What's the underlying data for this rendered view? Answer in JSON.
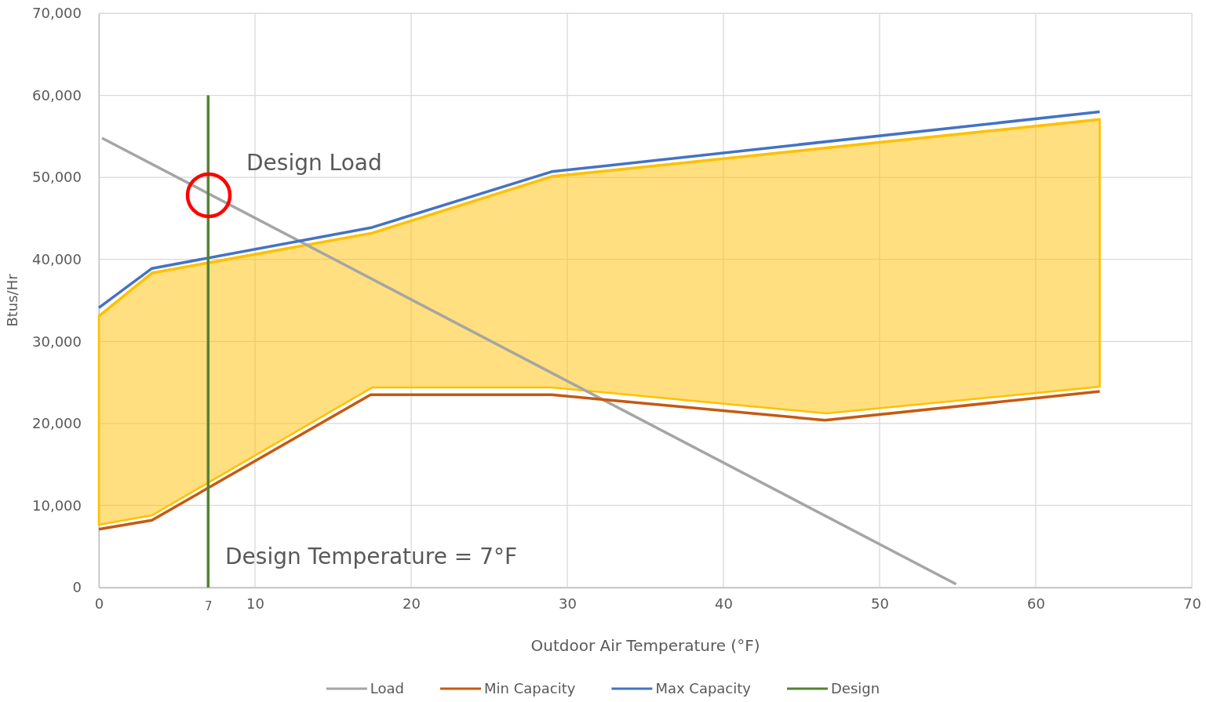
{
  "chart_data": {
    "type": "line",
    "xlabel": "Outdoor Air Temperature (°F)",
    "ylabel": "Btus/Hr",
    "xlim": [
      0,
      70
    ],
    "xticks": [
      0,
      7,
      10,
      20,
      30,
      40,
      50,
      60,
      70
    ],
    "ylim": [
      0,
      70000
    ],
    "yticks": [
      {
        "value": 0,
        "label": "0"
      },
      {
        "value": 10000,
        "label": "10,000"
      },
      {
        "value": 20000,
        "label": "20,000"
      },
      {
        "value": 30000,
        "label": "30,000"
      },
      {
        "value": 40000,
        "label": "40,000"
      },
      {
        "value": 50000,
        "label": "50,000"
      },
      {
        "value": 60000,
        "label": "60,000"
      },
      {
        "value": 70000,
        "label": "70,000"
      }
    ],
    "grid": true,
    "legend": "bottom",
    "marker": "none",
    "line_style": "solid",
    "series": [
      {
        "color": "#ffc000",
        "x": [
          0,
          3.4,
          17.5,
          29,
          46.6,
          64.1
        ],
        "lower": [
          7650,
          8800,
          24380,
          24380,
          21220,
          24470
        ],
        "upper": [
          33080,
          38340,
          43210,
          50100,
          53600,
          57070
        ],
        "values": [
          33080,
          38340,
          43210,
          50100,
          53600,
          57070
        ]
      },
      {
        "name": "Load",
        "color": "#a5a5a5",
        "x": [
          0.2,
          54.9
        ],
        "values": [
          54800,
          400
        ]
      },
      {
        "name": "Min Capacity",
        "color": "#c55a11",
        "x": [
          0,
          3.4,
          17.4,
          29,
          46.5,
          64.1
        ],
        "values": [
          7100,
          8200,
          23500,
          23500,
          20400,
          23900
        ]
      },
      {
        "name": "Max Capacity",
        "color": "#4472c4",
        "x": [
          0,
          3.4,
          17.5,
          29,
          64.1
        ],
        "values": [
          34100,
          38900,
          43900,
          50700,
          58000
        ]
      },
      {
        "name": "Design",
        "color": "#548235",
        "x": [
          7,
          7
        ],
        "values": [
          0,
          60000
        ]
      }
    ],
    "annotations": [
      "Design Load",
      "Design Temperature = 7°F"
    ]
  }
}
